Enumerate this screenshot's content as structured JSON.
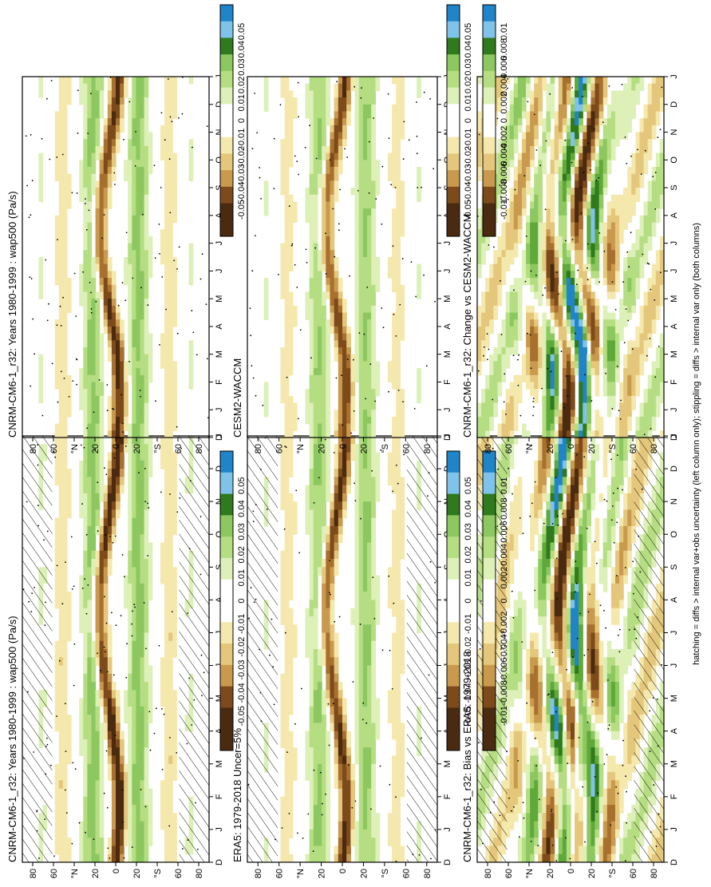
{
  "figure": {
    "footnote": "hatching = diffs > internal var+obs uncertainty (left column only); stippling = diffs > internal var only (both columns)"
  },
  "colors": {
    "pos": [
      "#ffffff",
      "#ddf0b8",
      "#b5dd82",
      "#8cc85f",
      "#5fa93a",
      "#2e7a1c",
      "#0f4a0e"
    ],
    "neg": [
      "#ffffff",
      "#f5e8ad",
      "#e4c77b",
      "#c99a4e",
      "#a8702e",
      "#7d4a1b",
      "#4a2a10"
    ],
    "neg_extreme": "#1f84c8",
    "neg_extreme2": "#7fc3ea"
  },
  "chart_data": [
    {
      "id": "p1",
      "type": "heatmap",
      "title": "CNRM-CM6-1_r32: Years 1980-1999 : wap500 (Pa/s)",
      "x_ticks": [
        "D",
        "J",
        "F",
        "M",
        "A",
        "M",
        "J",
        "J",
        "A",
        "S",
        "O",
        "N",
        "D",
        "J"
      ],
      "y_ticks": [
        "80",
        "60",
        "°N",
        "20",
        "0",
        "20",
        "°S",
        "60",
        "80"
      ],
      "colorbar_ticks": [
        "0.05",
        "0.04",
        "0.03",
        "0.02",
        "0.01",
        "0",
        "-0.01",
        "-0.02",
        "-0.03",
        "-0.04",
        "-0.05"
      ],
      "vmax": 0.05,
      "kind": "clim",
      "hatch": true,
      "stipple": 0.55,
      "amp": 1.05
    },
    {
      "id": "p2",
      "type": "heatmap",
      "title": "ERA5: 1979-2018 Uncer=5%",
      "x_ticks": [
        "D",
        "J",
        "F",
        "M",
        "A",
        "M",
        "J",
        "J",
        "A",
        "S",
        "O",
        "N",
        "D",
        "J"
      ],
      "y_ticks": [
        "80",
        "60",
        "°N",
        "20",
        "0",
        "20",
        "°S",
        "60",
        "80"
      ],
      "colorbar_ticks": [
        "0.05",
        "0.04",
        "0.03",
        "0.02",
        "0.01",
        "0",
        "-0.01",
        "-0.02",
        "-0.03",
        "-0.04",
        "-0.05"
      ],
      "vmax": 0.05,
      "kind": "clim",
      "hatch": true,
      "stipple": 0.35,
      "amp": 0.95
    },
    {
      "id": "p3",
      "type": "heatmap",
      "title": "CNRM-CM6-1_r32: Bias vs ERA5: 1979-2018",
      "x_ticks": [
        "D",
        "J",
        "F",
        "M",
        "A",
        "M",
        "J",
        "J",
        "A",
        "S",
        "O",
        "N",
        "D",
        "J"
      ],
      "y_ticks": [
        "80",
        "60",
        "°N",
        "20",
        "0",
        "20",
        "°S",
        "60",
        "80"
      ],
      "colorbar_ticks": [
        "0.01",
        "0.008",
        "0.006",
        "0.004",
        "0.002",
        "0",
        "-0.002",
        "-0.004",
        "-0.006",
        "-0.008",
        "-0.01"
      ],
      "vmax": 0.01,
      "kind": "bias",
      "hatch": true,
      "stipple": 0.6,
      "amp": 1.0
    },
    {
      "id": "p4",
      "type": "heatmap",
      "title": "CNRM-CM6-1_r32: Years 1980-1999 : wap500 (Pa/s)",
      "x_ticks": [
        "D",
        "J",
        "F",
        "M",
        "A",
        "M",
        "J",
        "J",
        "A",
        "S",
        "O",
        "N",
        "D",
        "J"
      ],
      "y_ticks": [
        "80",
        "60",
        "°N",
        "20",
        "0",
        "20",
        "°S",
        "60",
        "80"
      ],
      "colorbar_ticks": [
        "0.05",
        "0.04",
        "0.03",
        "0.02",
        "0.01",
        "0",
        "-0.01",
        "-0.02",
        "-0.03",
        "-0.04",
        "-0.05"
      ],
      "vmax": 0.05,
      "kind": "clim",
      "hatch": false,
      "stipple": 0.45,
      "amp": 1.0
    },
    {
      "id": "p5",
      "type": "heatmap",
      "title": "CESM2-WACCM",
      "x_ticks": [
        "D",
        "J",
        "F",
        "M",
        "A",
        "M",
        "J",
        "J",
        "A",
        "S",
        "O",
        "N",
        "D",
        "J"
      ],
      "y_ticks": [
        "80",
        "60",
        "°N",
        "20",
        "0",
        "20",
        "°S",
        "60",
        "80"
      ],
      "colorbar_ticks": [
        "0.05",
        "0.04",
        "0.03",
        "0.02",
        "0.01",
        "0",
        "-0.01",
        "-0.02",
        "-0.03",
        "-0.04",
        "-0.05"
      ],
      "vmax": 0.05,
      "kind": "clim",
      "hatch": false,
      "stipple": 0.4,
      "amp": 0.9
    },
    {
      "id": "p6",
      "type": "heatmap",
      "title": "CNRM-CM6-1_r32: Change vs CESM2-WACCM",
      "x_ticks": [
        "D",
        "J",
        "F",
        "M",
        "A",
        "M",
        "J",
        "J",
        "A",
        "S",
        "O",
        "N",
        "D",
        "J"
      ],
      "y_ticks": [
        "80",
        "60",
        "°N",
        "20",
        "0",
        "20",
        "°S",
        "60",
        "80"
      ],
      "colorbar_ticks": [
        "0.01",
        "0.008",
        "0.006",
        "0.004",
        "0.002",
        "0",
        "-0.002",
        "-0.004",
        "-0.006",
        "-0.008",
        "-0.01"
      ],
      "vmax": 0.01,
      "kind": "change",
      "hatch": false,
      "stipple": 0.5,
      "amp": 1.0
    }
  ]
}
